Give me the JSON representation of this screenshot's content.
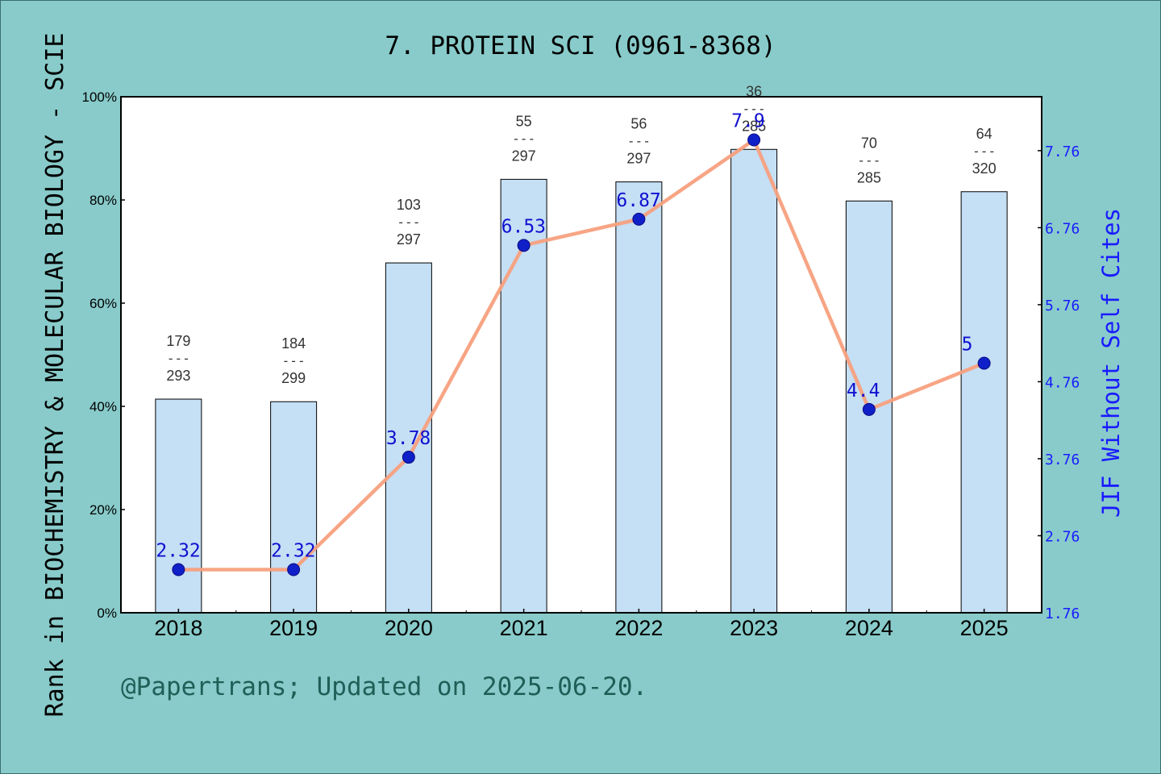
{
  "chart_data": {
    "type": "bar",
    "title": "7. PROTEIN SCI (0961-8368)",
    "ylabel_left": "Rank in BIOCHEMISTRY & MOLECULAR BIOLOGY - SCIE",
    "ylabel_right": "JIF Without Self Cites",
    "categories": [
      "2018",
      "2019",
      "2020",
      "2021",
      "2022",
      "2023",
      "2024",
      "2025"
    ],
    "left_axis": {
      "ylim": [
        0,
        100
      ],
      "ticks": [
        "0%",
        "20%",
        "40%",
        "60%",
        "80%",
        "100%"
      ]
    },
    "right_axis": {
      "ylim": [
        1.76,
        8.46
      ],
      "ticks": [
        "1.76",
        "2.76",
        "3.76",
        "4.76",
        "5.76",
        "6.76",
        "7.76"
      ]
    },
    "series": [
      {
        "kind": "bar",
        "axis": "left",
        "values": [
          41.4,
          40.9,
          67.8,
          84.0,
          83.5,
          89.8,
          79.8,
          81.6
        ],
        "rank_labels": [
          {
            "rank": "179",
            "total": "293"
          },
          {
            "rank": "184",
            "total": "299"
          },
          {
            "rank": "103",
            "total": "297"
          },
          {
            "rank": "55",
            "total": "297"
          },
          {
            "rank": "56",
            "total": "297"
          },
          {
            "rank": "36",
            "total": "285"
          },
          {
            "rank": "70",
            "total": "285"
          },
          {
            "rank": "64",
            "total": "320"
          }
        ],
        "color": "#c5dff5"
      },
      {
        "kind": "line",
        "axis": "right",
        "values": [
          2.32,
          2.32,
          3.78,
          6.53,
          6.87,
          7.9,
          4.4,
          5
        ],
        "labels": [
          "2.32",
          "2.32",
          "3.78",
          "6.53",
          "6.87",
          "7.9",
          "4.4",
          "5"
        ],
        "color": "#f7a07e",
        "marker_color": "#1020c8"
      }
    ],
    "separator": "---"
  },
  "footer": {
    "text": "@Papertrans; Updated on 2025-06-20."
  }
}
